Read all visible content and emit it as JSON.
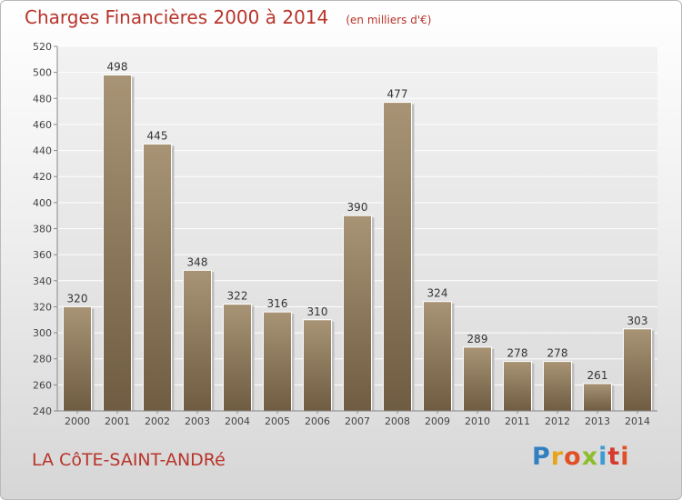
{
  "header": {
    "title": "Charges Financières 2000 à 2014",
    "subtitle": "(en milliers d'€)"
  },
  "footer": {
    "commune": "LA CôTE-SAINT-ANDRé",
    "logo_text": "Proxiti"
  },
  "chart_data": {
    "type": "bar",
    "title": "Charges Financières 2000 à 2014",
    "subtitle": "(en milliers d'€)",
    "categories": [
      "2000",
      "2001",
      "2002",
      "2003",
      "2004",
      "2005",
      "2006",
      "2007",
      "2008",
      "2009",
      "2010",
      "2011",
      "2012",
      "2013",
      "2014"
    ],
    "values": [
      320,
      498,
      445,
      348,
      322,
      316,
      310,
      390,
      477,
      324,
      289,
      278,
      278,
      261,
      303
    ],
    "ylim": [
      240,
      520
    ],
    "yticks": [
      240,
      260,
      280,
      300,
      320,
      340,
      360,
      380,
      400,
      420,
      440,
      460,
      480,
      500,
      520
    ],
    "grid": true,
    "bar_color": "#8f7a5e"
  }
}
